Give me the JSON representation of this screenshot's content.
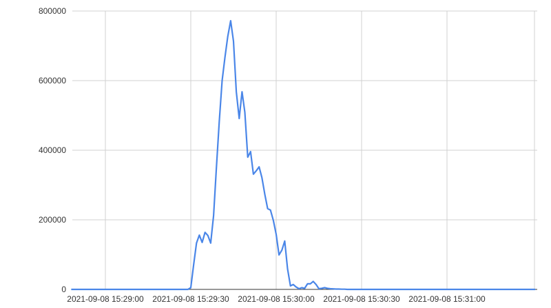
{
  "chart_data": {
    "type": "line",
    "title": "",
    "xlabel": "",
    "ylabel": "",
    "date": "2021-09-08",
    "ylim": [
      0,
      800000
    ],
    "yticks": [
      "0",
      "200000",
      "400000",
      "600000",
      "800000"
    ],
    "xticks": [
      "2021-09-08 15:29:00",
      "2021-09-08 15:29:30",
      "2021-09-08 15:30:00",
      "2021-09-08 15:30:30",
      "2021-09-08 15:31:00"
    ],
    "xlim": [
      "15:28:48",
      "15:31:31"
    ],
    "grid": true,
    "line_color": "#4a86e8",
    "series": [
      {
        "x": [
          "15:28:48",
          "15:28:49",
          "15:28:50",
          "15:28:51",
          "15:28:52",
          "15:28:53",
          "15:28:54",
          "15:28:55",
          "15:28:56",
          "15:28:57",
          "15:28:58",
          "15:28:59",
          "15:29:00",
          "15:29:01",
          "15:29:02",
          "15:29:03",
          "15:29:04",
          "15:29:05",
          "15:29:06",
          "15:29:07",
          "15:29:08",
          "15:29:09",
          "15:29:10",
          "15:29:11",
          "15:29:12",
          "15:29:13",
          "15:29:14",
          "15:29:15",
          "15:29:16",
          "15:29:17",
          "15:29:18",
          "15:29:19",
          "15:29:20",
          "15:29:21",
          "15:29:22",
          "15:29:23",
          "15:29:24",
          "15:29:25",
          "15:29:26",
          "15:29:27",
          "15:29:28",
          "15:29:29",
          "15:29:30",
          "15:29:31",
          "15:29:32",
          "15:29:33",
          "15:29:34",
          "15:29:35",
          "15:29:36",
          "15:29:37",
          "15:29:38",
          "15:29:39",
          "15:29:40",
          "15:29:41",
          "15:29:42",
          "15:29:43",
          "15:29:44",
          "15:29:45",
          "15:29:46",
          "15:29:47",
          "15:29:48",
          "15:29:49",
          "15:29:50",
          "15:29:51",
          "15:29:52",
          "15:29:53",
          "15:29:54",
          "15:29:55",
          "15:29:56",
          "15:29:57",
          "15:29:58",
          "15:29:59",
          "15:30:00",
          "15:30:01",
          "15:30:02",
          "15:30:03",
          "15:30:04",
          "15:30:05",
          "15:30:06",
          "15:30:07",
          "15:30:08",
          "15:30:09",
          "15:30:10",
          "15:30:11",
          "15:30:12",
          "15:30:13",
          "15:30:14",
          "15:30:15",
          "15:30:16",
          "15:30:17",
          "15:30:18",
          "15:30:19",
          "15:30:20",
          "15:30:21",
          "15:30:22",
          "15:30:23",
          "15:30:24",
          "15:30:25",
          "15:30:26",
          "15:30:27",
          "15:30:28",
          "15:30:29",
          "15:30:30",
          "15:30:31",
          "15:30:32",
          "15:30:33",
          "15:30:34",
          "15:30:35",
          "15:30:36",
          "15:30:37",
          "15:30:38",
          "15:30:39",
          "15:30:40",
          "15:30:41",
          "15:30:42",
          "15:30:43",
          "15:30:44",
          "15:30:45",
          "15:30:46",
          "15:30:47",
          "15:30:48",
          "15:30:49",
          "15:30:50",
          "15:30:51",
          "15:30:52",
          "15:30:53",
          "15:30:54",
          "15:30:55",
          "15:30:56",
          "15:30:57",
          "15:30:58",
          "15:30:59",
          "15:31:00",
          "15:31:01",
          "15:31:02",
          "15:31:03",
          "15:31:04",
          "15:31:05",
          "15:31:06",
          "15:31:07",
          "15:31:08",
          "15:31:09",
          "15:31:10",
          "15:31:11",
          "15:31:12",
          "15:31:13",
          "15:31:14",
          "15:31:15",
          "15:31:16",
          "15:31:17",
          "15:31:18",
          "15:31:19",
          "15:31:20",
          "15:31:21",
          "15:31:22",
          "15:31:23",
          "15:31:24",
          "15:31:25",
          "15:31:26",
          "15:31:27",
          "15:31:28",
          "15:31:29",
          "15:31:30",
          "15:31:31"
        ],
        "y": [
          0,
          0,
          0,
          0,
          0,
          0,
          0,
          0,
          0,
          0,
          0,
          0,
          0,
          0,
          0,
          0,
          0,
          0,
          0,
          0,
          0,
          0,
          0,
          0,
          0,
          0,
          0,
          0,
          0,
          0,
          0,
          0,
          0,
          0,
          0,
          0,
          0,
          0,
          0,
          0,
          0,
          0,
          5000,
          70000,
          133000,
          156000,
          135000,
          164000,
          155000,
          133000,
          212000,
          350000,
          481000,
          600000,
          667000,
          727000,
          772000,
          713000,
          568000,
          491000,
          568000,
          509000,
          380000,
          396000,
          331000,
          341000,
          352000,
          321000,
          273000,
          232000,
          228000,
          198000,
          158000,
          99000,
          113000,
          139000,
          59000,
          10000,
          14000,
          7000,
          2000,
          5000,
          3000,
          16000,
          16000,
          23000,
          14000,
          2000,
          3000,
          5000,
          3000,
          2000,
          1500,
          1000,
          1000,
          500,
          500,
          0,
          0,
          0,
          0,
          0,
          0,
          0,
          0,
          0,
          0,
          0,
          0,
          0,
          0,
          0,
          0,
          0,
          0,
          0,
          0,
          0,
          0,
          0,
          0,
          0,
          0,
          0,
          0,
          0,
          0,
          0,
          0,
          0,
          0,
          0,
          0,
          0,
          0,
          0,
          0,
          0,
          0,
          0,
          0,
          0,
          0,
          0,
          0,
          0,
          0,
          0,
          0,
          0,
          0,
          0,
          0,
          0,
          0,
          0,
          0,
          0,
          0,
          0,
          0,
          0,
          0,
          0
        ]
      }
    ]
  }
}
